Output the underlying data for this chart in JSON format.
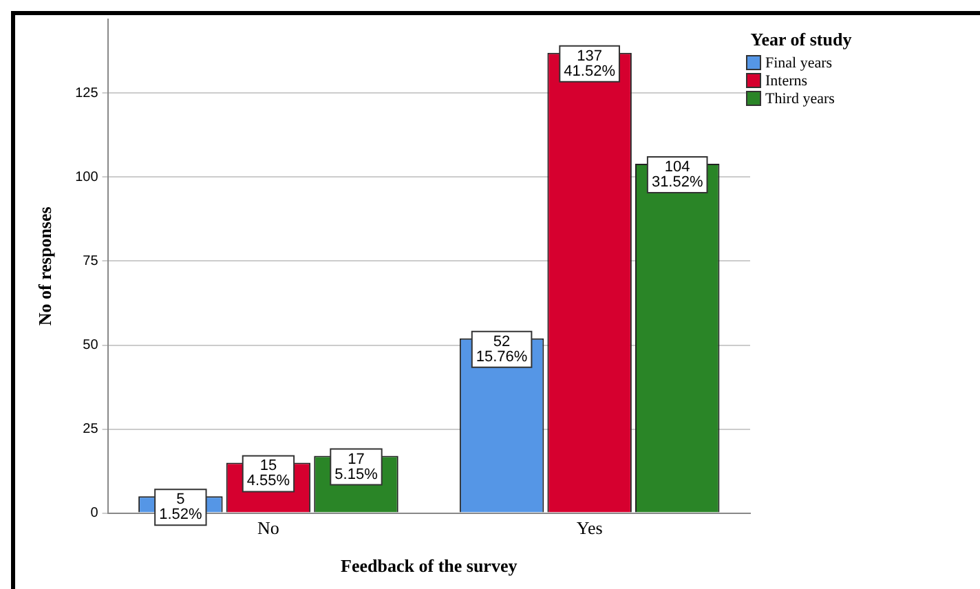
{
  "chart_data": {
    "type": "bar",
    "xlabel": "Feedback of the survey",
    "ylabel": "No of responses",
    "legend_title": "Year of study",
    "categories": [
      "No",
      "Yes"
    ],
    "series": [
      {
        "name": "Final years",
        "color": "#5596e6",
        "values": [
          5,
          52
        ],
        "value_labels": [
          "5\n1.52%",
          "52\n15.76%"
        ]
      },
      {
        "name": "Interns",
        "color": "#d6002f",
        "values": [
          15,
          137
        ],
        "value_labels": [
          "15\n4.55%",
          "137\n41.52%"
        ]
      },
      {
        "name": "Third years",
        "color": "#2a8527",
        "values": [
          17,
          104
        ],
        "value_labels": [
          "17\n5.15%",
          "104\n31.52%"
        ]
      }
    ],
    "ylim": [
      0,
      147
    ],
    "yticks": [
      0,
      25,
      50,
      75,
      100,
      125
    ],
    "grid": "y",
    "legend": "top right"
  }
}
